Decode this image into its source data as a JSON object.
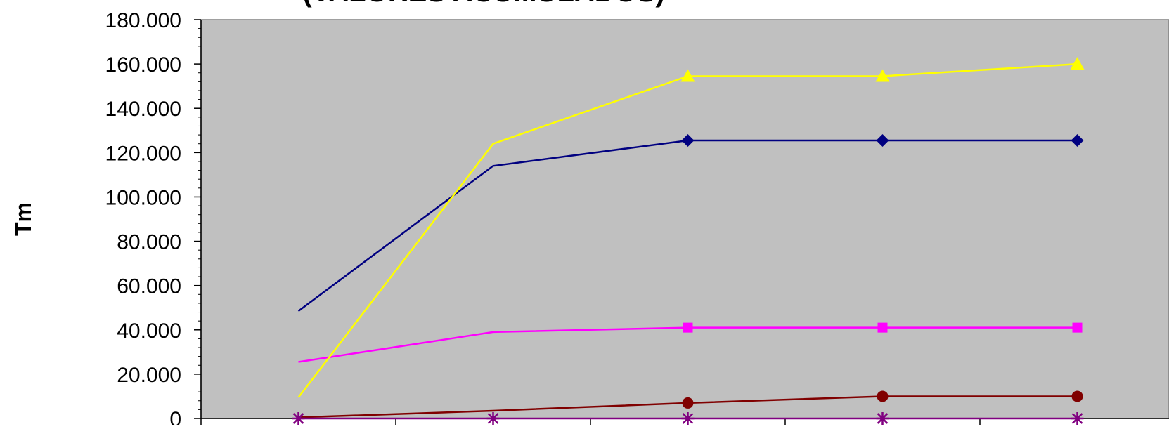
{
  "chart_data": {
    "type": "line",
    "title": "(VALORES ACUMULADOS)",
    "ylabel": "Tm",
    "ylim": [
      0,
      180000
    ],
    "ytick_values": [
      0,
      20000,
      40000,
      60000,
      80000,
      100000,
      120000,
      140000,
      160000,
      180000
    ],
    "ytick_labels": [
      "0",
      "20.000",
      "40.000",
      "60.000",
      "80.000",
      "100.000",
      "120.000",
      "140.000",
      "160.000",
      "180.000"
    ],
    "grid": false,
    "plot_background": "#c0c0c0",
    "n_categories": 5,
    "series": [
      {
        "color": "#000080",
        "marker": "diamond",
        "values": [
          48500,
          114000,
          125500,
          125500,
          125500
        ]
      },
      {
        "color": "#ff00ff",
        "marker": "square",
        "values": [
          25500,
          39000,
          41000,
          41000,
          41000
        ]
      },
      {
        "color": "#ffff00",
        "marker": "triangle",
        "values": [
          9500,
          124000,
          154500,
          154500,
          160000
        ]
      },
      {
        "color": "#800000",
        "marker": "circle",
        "values": [
          500,
          3500,
          7000,
          10000,
          10000
        ]
      },
      {
        "color": "#800080",
        "marker": "star",
        "values": [
          0,
          0,
          0,
          0,
          0
        ]
      }
    ]
  }
}
